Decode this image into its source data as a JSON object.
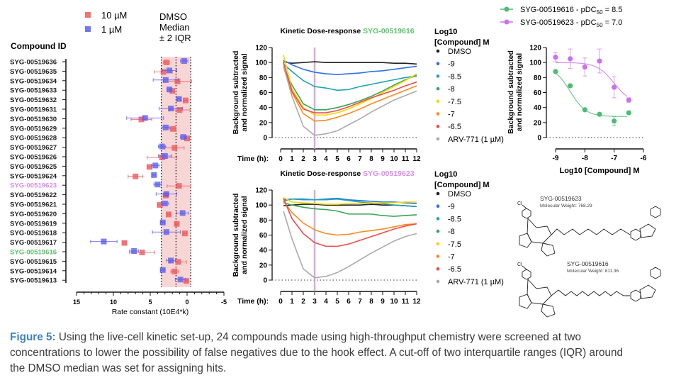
{
  "caption": {
    "label": "Figure 5:",
    "text": " Using the live-cell kinetic set-up, 24 compounds made using high-throughput chemistry were screened at two concentrations to lower the possibility of false negatives due to the hook effect. A cut-off of two interquartile ranges (IQR) around the DMSO median was set for assigning hits."
  },
  "colors": {
    "red": "#f0595e",
    "blue": "#5b5ef0",
    "band": "#f9d6d6",
    "green_id": "#5cc26a",
    "purple_id": "#d98ef0",
    "caption_label": "#3d82c4"
  },
  "chart_data": [
    {
      "type": "scatter",
      "title": "",
      "ylabel": "Compound ID",
      "xlabel": "Rate constant (10E4*k)",
      "xlim": [
        15,
        -5
      ],
      "xticks": [
        "15",
        "10",
        "5",
        "0",
        "-5"
      ],
      "xtick_values": [
        15,
        10,
        5,
        0,
        -5
      ],
      "legend": {
        "items": [
          "10 µM",
          "1 µM"
        ],
        "placement": "top"
      },
      "band_label": [
        "DMSO",
        "Median",
        "± 2 IQR"
      ],
      "band": {
        "low": -0.5,
        "median": 1.5,
        "high": 3.5
      },
      "categories": [
        "SYG-00519636",
        "SYG-00519635",
        "SYG-00519634",
        "SYG-00519633",
        "SYG-00519632",
        "SYG-00519631",
        "SYG-00519630",
        "SYG-00519629",
        "SYG-00519628",
        "SYG-00519627",
        "SYG-00519626",
        "SYG-00519625",
        "SYG-00519624",
        "SYG-00519623",
        "SYG-00519622",
        "SYG-00519621",
        "SYG-00519620",
        "SYG-00519619",
        "SYG-00519618",
        "SYG-00519617",
        "SYG-00519616",
        "SYG-00519615",
        "SYG-00519614",
        "SYG-00519613"
      ],
      "highlight": {
        "SYG-00519623": "#d98ef0",
        "SYG-00519616": "#5cc26a"
      },
      "series": [
        {
          "name": "10 µM",
          "color": "#f0595e",
          "values": [
            2.8,
            3.2,
            1.3,
            2.0,
            0.2,
            1.0,
            6.2,
            1.9,
            0.0,
            1.7,
            3.4,
            5.1,
            7.0,
            1.1,
            2.9,
            3.7,
            2.5,
            1.4,
            0.3,
            8.5,
            6.1,
            1.2,
            1.7,
            0.1
          ],
          "err": [
            0.4,
            1.2,
            1.9,
            0.3,
            0.3,
            1.4,
            1.4,
            0.4,
            0.3,
            1.3,
            2.0,
            0.3,
            1.0,
            1.6,
            0.3,
            0.3,
            0.2,
            0.2,
            0.2,
            0.2,
            1.7,
            1.1,
            0.5,
            0.2
          ]
        },
        {
          "name": "1 µM",
          "color": "#5b5ef0",
          "values": [
            0.4,
            2.4,
            2.9,
            2.4,
            1.1,
            2.2,
            5.7,
            2.9,
            0.5,
            3.4,
            3.0,
            4.3,
            4.5,
            4.0,
            2.8,
            3.0,
            0.6,
            3.3,
            2.8,
            11.3,
            7.2,
            2.2,
            3.3,
            0.9
          ],
          "err": [
            0.5,
            1.0,
            1.7,
            0.3,
            0.2,
            1.6,
            2.5,
            0.5,
            0.4,
            0.5,
            0.9,
            0.5,
            0.2,
            0.5,
            1.4,
            0.5,
            0.8,
            0.3,
            1.9,
            1.8,
            0.6,
            0.6,
            0.3,
            0.7
          ]
        }
      ]
    },
    {
      "type": "line",
      "title": "Kinetic Dose-response ",
      "title_compound": "SYG-00519616",
      "title_color": "#5cc26a",
      "ylabel": [
        "Background subtracted",
        "and normalized signal"
      ],
      "xlabel": "Time (h):",
      "ylim": [
        0,
        120
      ],
      "yticks": [
        "0",
        "20",
        "40",
        "60",
        "80",
        "100",
        "120"
      ],
      "xlim": [
        0,
        12
      ],
      "xticks": [
        "0",
        "1",
        "2",
        "3",
        "4",
        "5",
        "6",
        "7",
        "8",
        "9",
        "10",
        "11",
        "12"
      ],
      "marker_time": 3,
      "legend_title": [
        "Log10",
        "[Compound]  M"
      ],
      "x": [
        0.25,
        1,
        2,
        3,
        4,
        5,
        6,
        7,
        8,
        9,
        10,
        11,
        12
      ],
      "series": [
        {
          "name": "DMSO",
          "color": "#222222",
          "values": [
            101,
            99,
            100,
            101,
            100,
            100,
            100,
            100,
            100,
            100,
            99,
            99,
            98
          ]
        },
        {
          "name": "-9",
          "color": "#2f6fe0",
          "values": [
            103,
            97,
            91,
            87,
            85,
            84,
            85,
            86,
            88,
            89,
            91,
            93,
            95
          ]
        },
        {
          "name": "-8.5",
          "color": "#1ea3b8",
          "values": [
            98,
            88,
            76,
            68,
            66,
            63,
            64,
            68,
            71,
            74,
            77,
            80,
            82
          ]
        },
        {
          "name": "-8",
          "color": "#3aa35a",
          "values": [
            95,
            70,
            45,
            37,
            37,
            40,
            44,
            49,
            55,
            62,
            70,
            77,
            83
          ]
        },
        {
          "name": "-7.5",
          "color": "#f5d800",
          "values": [
            110,
            65,
            40,
            30,
            30,
            33,
            38,
            45,
            52,
            60,
            68,
            76,
            85
          ]
        },
        {
          "name": "-7",
          "color": "#ff8a1c",
          "values": [
            100,
            60,
            32,
            22,
            23,
            27,
            32,
            38,
            45,
            51,
            57,
            63,
            69
          ]
        },
        {
          "name": "-6.5",
          "color": "#ef4b4b",
          "values": [
            100,
            62,
            38,
            33,
            33,
            36,
            41,
            47,
            53,
            58,
            63,
            69,
            74
          ]
        },
        {
          "name": "ARV-771 (1 µM)",
          "color": "#aaaaaa",
          "values": [
            95,
            55,
            15,
            3,
            5,
            9,
            17,
            25,
            34,
            42,
            50,
            56,
            62
          ]
        }
      ]
    },
    {
      "type": "line",
      "title": "Kinetic Dose-response ",
      "title_compound": "SYG-00519623",
      "title_color": "#d98ef0",
      "ylabel": [
        "Background subtracted",
        "and normalized signal"
      ],
      "xlabel": "Time (h):",
      "ylim": [
        0,
        120
      ],
      "yticks": [
        "0",
        "20",
        "40",
        "60",
        "80",
        "100",
        "120"
      ],
      "xlim": [
        0,
        12
      ],
      "xticks": [
        "0",
        "1",
        "2",
        "3",
        "4",
        "5",
        "6",
        "7",
        "8",
        "9",
        "10",
        "11",
        "12"
      ],
      "marker_time": 3,
      "legend_title": [
        "Log10",
        "[Compound]  M"
      ],
      "x": [
        0.25,
        1,
        2,
        3,
        4,
        5,
        6,
        7,
        8,
        9,
        10,
        11,
        12
      ],
      "series": [
        {
          "name": "DMSO",
          "color": "#222222",
          "values": [
            99,
            100,
            101,
            101,
            100,
            100,
            100,
            100,
            101,
            100,
            100,
            99,
            98
          ]
        },
        {
          "name": "-9",
          "color": "#2f6fe0",
          "values": [
            107,
            108,
            108,
            107,
            108,
            109,
            107,
            106,
            105,
            104,
            104,
            103,
            102
          ]
        },
        {
          "name": "-8.5",
          "color": "#1ea3b8",
          "values": [
            105,
            108,
            107,
            107,
            107,
            108,
            106,
            104,
            103,
            102,
            100,
            99,
            98
          ]
        },
        {
          "name": "-8",
          "color": "#3aa35a",
          "values": [
            103,
            100,
            97,
            95,
            94,
            92,
            88,
            88,
            88,
            86,
            85,
            86,
            87
          ]
        },
        {
          "name": "-7.5",
          "color": "#f5d800",
          "values": [
            110,
            104,
            103,
            102,
            101,
            101,
            102,
            102,
            103,
            103,
            103,
            104,
            104
          ]
        },
        {
          "name": "-7",
          "color": "#ff8a1c",
          "values": [
            105,
            90,
            76,
            67,
            62,
            60,
            61,
            64,
            66,
            68,
            71,
            74,
            75
          ]
        },
        {
          "name": "-6.5",
          "color": "#ef4b4b",
          "values": [
            109,
            82,
            62,
            50,
            45,
            45,
            48,
            53,
            58,
            63,
            68,
            72,
            75
          ]
        },
        {
          "name": "ARV-771 (1 µM)",
          "color": "#aaaaaa",
          "values": [
            92,
            55,
            15,
            3,
            5,
            10,
            18,
            27,
            36,
            44,
            52,
            58,
            62
          ]
        }
      ]
    },
    {
      "type": "scatter",
      "title": "",
      "ylabel": [
        "Background subtracted",
        "and normalized signal"
      ],
      "xlabel": "Log10 [Compound] M",
      "ylim": [
        0,
        120
      ],
      "yticks": [
        "0",
        "20",
        "40",
        "60",
        "80",
        "100",
        "120"
      ],
      "xlim": [
        -9,
        -6
      ],
      "xticks": [
        "-9",
        "-8",
        "-7",
        "-6"
      ],
      "legend": {
        "placement": "top"
      },
      "x": [
        -9,
        -8.5,
        -8,
        -7.5,
        -7,
        -6.5
      ],
      "series": [
        {
          "name": "SYG-00519616 - pDC",
          "sub": "50",
          "suffix": " = 8.5",
          "color": "#4dbb76",
          "pdc50": 8.5,
          "values": [
            88,
            69,
            37,
            31,
            22,
            33
          ],
          "err": [
            0,
            0,
            0,
            0,
            6,
            0
          ]
        },
        {
          "name": "SYG-00519623 - pDC",
          "sub": "50",
          "suffix": " = 7.0",
          "color": "#cc6ff0",
          "pdc50": 7.0,
          "values": [
            107,
            105,
            94,
            102,
            67,
            50
          ],
          "err": [
            6,
            13,
            12,
            16,
            14,
            3
          ]
        }
      ]
    }
  ],
  "structures": [
    {
      "id": "SYG-00519623",
      "mw": "Molecular Weight: 768.29"
    },
    {
      "id": "SYG-00519616",
      "mw": "Molecular Weight: 811.36"
    }
  ]
}
